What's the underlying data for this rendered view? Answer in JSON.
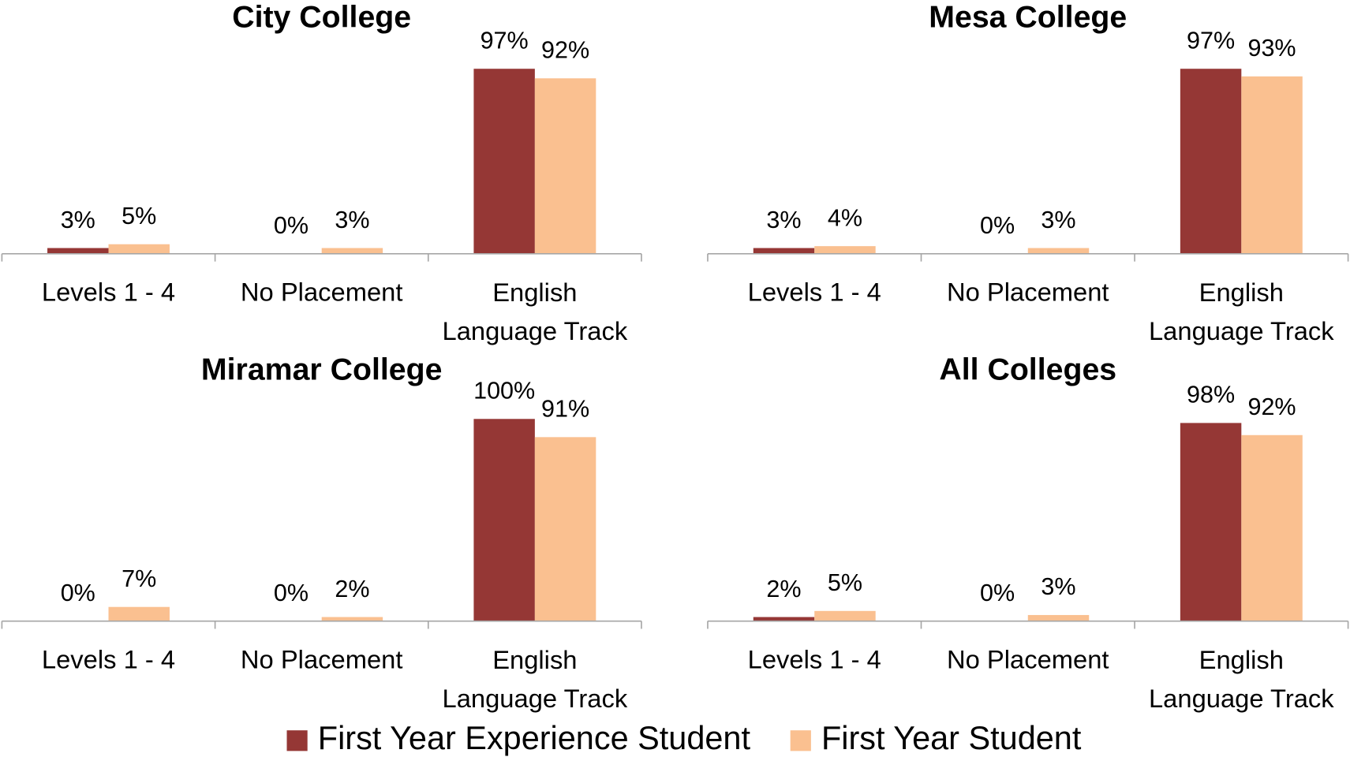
{
  "chart_data": [
    {
      "type": "bar",
      "title": "City College",
      "categories": [
        "Levels 1 - 4",
        "No Placement",
        "English Language Track"
      ],
      "ylim": [
        0,
        106
      ],
      "series": [
        {
          "values": [
            3,
            0,
            97
          ],
          "value_labels": [
            "3%",
            "0%",
            "97%"
          ]
        },
        {
          "values": [
            5,
            3,
            92
          ],
          "value_labels": [
            "5%",
            "3%",
            "92%"
          ]
        }
      ]
    },
    {
      "type": "bar",
      "title": "Mesa College",
      "categories": [
        "Levels 1 - 4",
        "No Placement",
        "English Language Track"
      ],
      "ylim": [
        0,
        106
      ],
      "series": [
        {
          "values": [
            3,
            0,
            97
          ],
          "value_labels": [
            "3%",
            "0%",
            "97%"
          ]
        },
        {
          "values": [
            4,
            3,
            93
          ],
          "value_labels": [
            "4%",
            "3%",
            "93%"
          ]
        }
      ]
    },
    {
      "type": "bar",
      "title": "Miramar College",
      "categories": [
        "Levels 1 - 4",
        "No Placement",
        "English Language Track"
      ],
      "ylim": [
        0,
        100
      ],
      "series": [
        {
          "values": [
            0,
            0,
            100
          ],
          "value_labels": [
            "0%",
            "0%",
            "100%"
          ]
        },
        {
          "values": [
            7,
            2,
            91
          ],
          "value_labels": [
            "7%",
            "2%",
            "91%"
          ]
        }
      ]
    },
    {
      "type": "bar",
      "title": "All Colleges",
      "categories": [
        "Levels 1 - 4",
        "No Placement",
        "English Language Track"
      ],
      "ylim": [
        0,
        100
      ],
      "series": [
        {
          "values": [
            2,
            0,
            98
          ],
          "value_labels": [
            "2%",
            "0%",
            "98%"
          ]
        },
        {
          "values": [
            5,
            3,
            92
          ],
          "value_labels": [
            "5%",
            "3%",
            "92%"
          ]
        }
      ]
    }
  ],
  "legend": [
    {
      "name": "First Year Experience Student",
      "color": "#953735"
    },
    {
      "name": "First Year Student",
      "color": "#fac090"
    }
  ]
}
